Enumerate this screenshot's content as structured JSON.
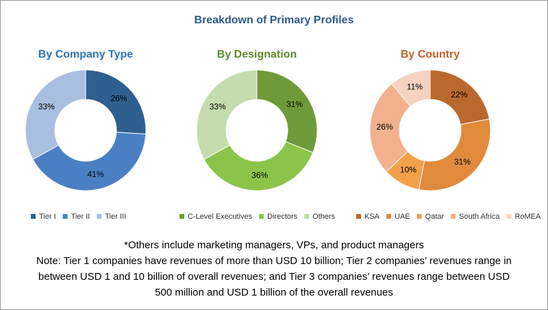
{
  "title": "Breakdown of Primary Profiles",
  "footnotes": [
    "*Others include marketing managers, VPs, and product managers",
    "Note: Tier 1 companies have revenues of more than USD 10 billion; Tier 2 companies’ revenues range in",
    "between USD 1 and 10 billion of overall revenues; and Tier 3 companies’ revenues range between USD",
    "500 million and USD 1 billion of the overall revenues"
  ],
  "chart_data": [
    {
      "type": "donut",
      "title": "By Company Type",
      "categories": [
        "Tier I",
        "Tier II",
        "Tier III"
      ],
      "values": [
        26,
        41,
        33
      ],
      "value_labels": [
        "26%",
        "41%",
        "33%"
      ],
      "colors": [
        "#2f5f8f",
        "#4a7fc4",
        "#a9bfe0"
      ]
    },
    {
      "type": "donut",
      "title": "By Designation",
      "categories": [
        "C-Level Executives",
        "Directors",
        "Others"
      ],
      "values": [
        31,
        36,
        33
      ],
      "value_labels": [
        "31%",
        "36%",
        "33%"
      ],
      "colors": [
        "#6f9a3a",
        "#8cc44a",
        "#c5dcae"
      ]
    },
    {
      "type": "donut",
      "title": "By Country",
      "categories": [
        "KSA",
        "UAE",
        "Qatar",
        "South Africa",
        "RoMEA"
      ],
      "values": [
        22,
        31,
        10,
        26,
        11
      ],
      "value_labels": [
        "22%",
        "31%",
        "10%",
        "26%",
        "11%"
      ],
      "colors": [
        "#b9692d",
        "#e08a3c",
        "#f3a04a",
        "#f2b08c",
        "#f6d2c2"
      ]
    }
  ]
}
